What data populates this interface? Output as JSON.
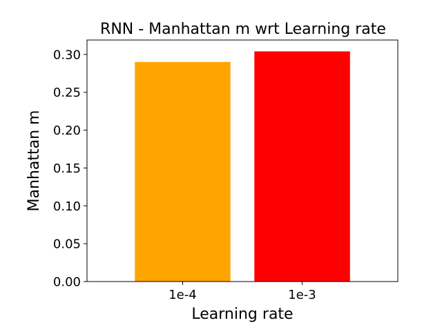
{
  "chart_data": {
    "type": "bar",
    "title": "RNN - Manhattan m wrt Learning rate",
    "xlabel": "Learning rate",
    "ylabel": "Manhattan m",
    "categories": [
      "1e-4",
      "1e-3"
    ],
    "values": [
      0.29,
      0.304
    ],
    "bar_colors": [
      "#FFA500",
      "#FF0000"
    ],
    "ylim": [
      0,
      0.319
    ],
    "yticks": [
      0.0,
      0.05,
      0.1,
      0.15,
      0.2,
      0.25,
      0.3
    ],
    "ytick_labels": [
      "0.00",
      "0.05",
      "0.10",
      "0.15",
      "0.20",
      "0.25",
      "0.30"
    ],
    "grid": false,
    "legend": "none"
  }
}
